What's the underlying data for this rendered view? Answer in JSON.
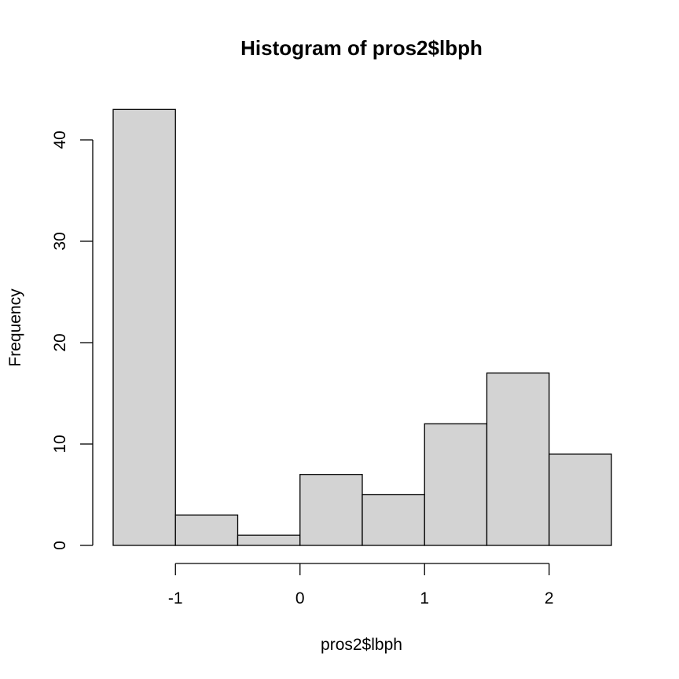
{
  "chart_data": {
    "type": "bar",
    "title": "Histogram of pros2$lbph",
    "xlabel": "pros2$lbph",
    "ylabel": "Frequency",
    "bins": [
      {
        "start": -1.5,
        "end": -1.0,
        "count": 43
      },
      {
        "start": -1.0,
        "end": -0.5,
        "count": 3
      },
      {
        "start": -0.5,
        "end": 0.0,
        "count": 1
      },
      {
        "start": 0.0,
        "end": 0.5,
        "count": 7
      },
      {
        "start": 0.5,
        "end": 1.0,
        "count": 5
      },
      {
        "start": 1.0,
        "end": 1.5,
        "count": 12
      },
      {
        "start": 1.5,
        "end": 2.0,
        "count": 17
      },
      {
        "start": 2.0,
        "end": 2.5,
        "count": 9
      }
    ],
    "x_ticks": [
      -1,
      0,
      1,
      2
    ],
    "y_ticks": [
      0,
      10,
      20,
      30,
      40
    ],
    "xlim": [
      -1.5,
      2.5
    ],
    "ylim": [
      0,
      43
    ],
    "bar_color": "#d3d3d3",
    "grid": false
  }
}
